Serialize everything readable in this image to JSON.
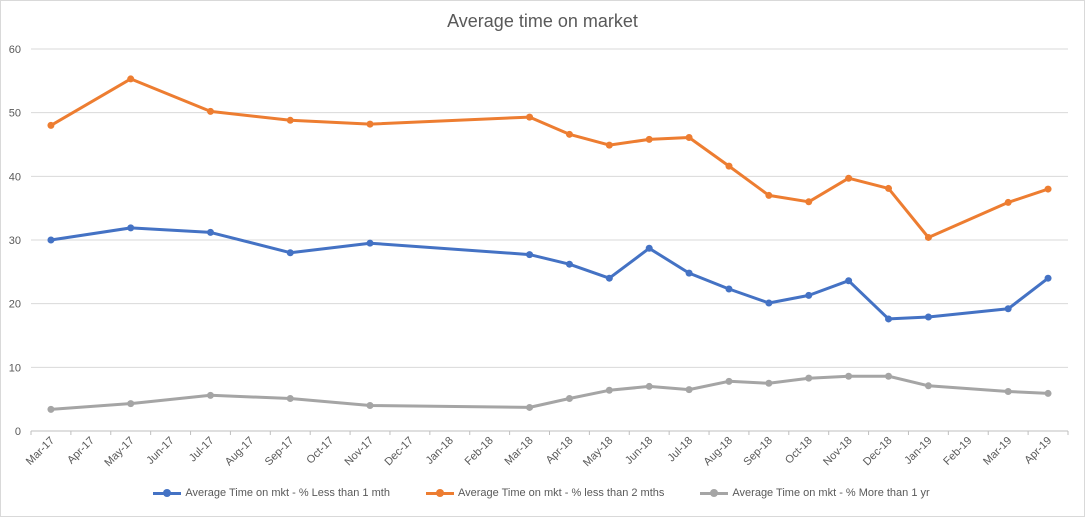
{
  "chart_data": {
    "type": "line",
    "title": "Average time on market",
    "xlabel": "",
    "ylabel": "",
    "ylim": [
      0,
      60
    ],
    "yticks": [
      0,
      10,
      20,
      30,
      40,
      50,
      60
    ],
    "grid": true,
    "legend_position": "bottom",
    "categories": [
      "Mar-17",
      "Apr-17",
      "May-17",
      "Jun-17",
      "Jul-17",
      "Aug-17",
      "Sep-17",
      "Oct-17",
      "Nov-17",
      "Dec-17",
      "Jan-18",
      "Feb-18",
      "Mar-18",
      "Apr-18",
      "May-18",
      "Jun-18",
      "Jul-18",
      "Aug-18",
      "Sep-18",
      "Oct-18",
      "Nov-18",
      "Dec-18",
      "Jan-19",
      "Feb-19",
      "Mar-19",
      "Apr-19"
    ],
    "series": [
      {
        "name": "Average  Time on mkt - % Less than 1 mth",
        "color": "#4472c4",
        "values": [
          30.0,
          null,
          31.9,
          null,
          31.2,
          null,
          28.0,
          null,
          29.5,
          null,
          null,
          null,
          27.7,
          26.2,
          24.0,
          28.7,
          24.8,
          22.3,
          20.1,
          21.3,
          23.6,
          17.6,
          17.9,
          null,
          19.2,
          24.0
        ]
      },
      {
        "name": "Average  Time on mkt - % less than 2 mths",
        "color": "#ed7d31",
        "values": [
          48.0,
          null,
          55.3,
          null,
          50.2,
          null,
          48.8,
          null,
          48.2,
          null,
          null,
          null,
          49.3,
          46.6,
          44.9,
          45.8,
          46.1,
          41.6,
          37.0,
          36.0,
          39.7,
          38.1,
          30.4,
          null,
          35.9,
          38.0
        ]
      },
      {
        "name": "Average  Time on mkt - % More than 1 yr",
        "color": "#a5a5a5",
        "values": [
          3.4,
          null,
          4.3,
          null,
          5.6,
          null,
          5.1,
          null,
          4.0,
          null,
          null,
          null,
          3.7,
          5.1,
          6.4,
          7.0,
          6.5,
          7.8,
          7.5,
          8.3,
          8.6,
          8.6,
          7.1,
          null,
          6.2,
          5.9
        ]
      }
    ]
  }
}
